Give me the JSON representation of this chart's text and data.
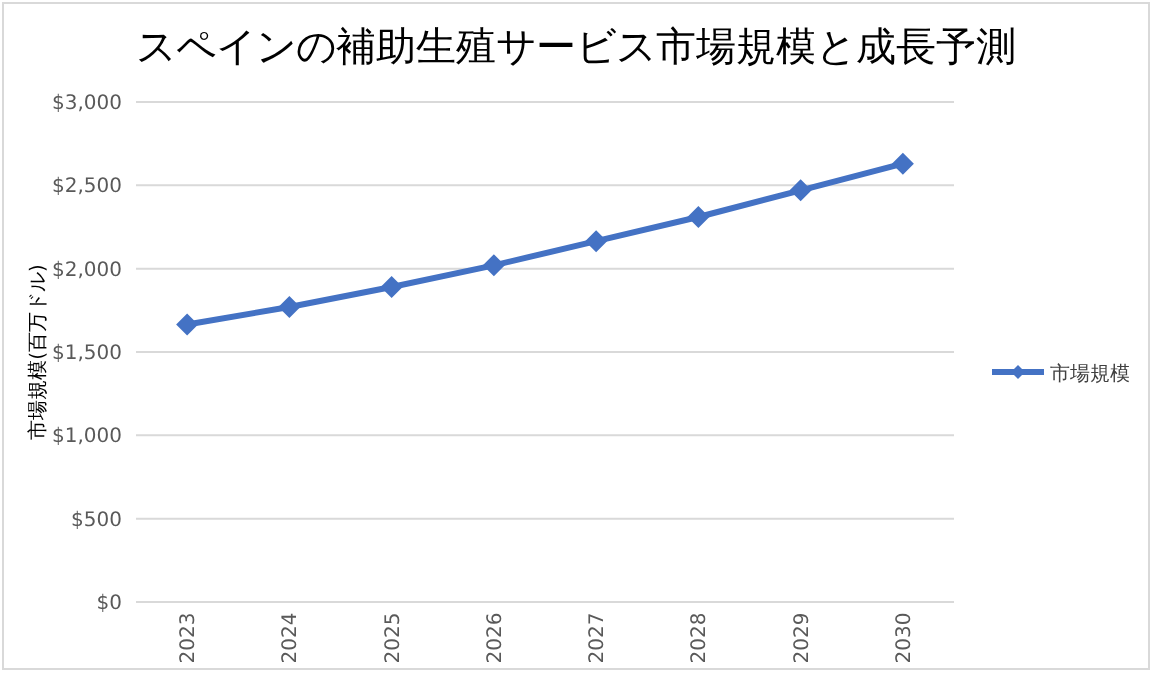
{
  "chart_data": {
    "type": "line",
    "title": "スペインの補助生殖サービス市場規模と成長予測",
    "ylabel": "市場規模(百万ドル)",
    "categories": [
      "2023",
      "2024",
      "2025",
      "2026",
      "2027",
      "2028",
      "2029",
      "2030"
    ],
    "series": [
      {
        "name": "市場規模",
        "color": "#4472c4",
        "values": [
          1665,
          1770,
          1890,
          2020,
          2165,
          2310,
          2470,
          2630
        ]
      }
    ],
    "ylim": [
      0,
      3000
    ],
    "yticks": [
      {
        "value": 0,
        "label": "$0"
      },
      {
        "value": 500,
        "label": "$500"
      },
      {
        "value": 1000,
        "label": "$1,000"
      },
      {
        "value": 1500,
        "label": "$1,500"
      },
      {
        "value": 2000,
        "label": "$2,000"
      },
      {
        "value": 2500,
        "label": "$2,500"
      },
      {
        "value": 3000,
        "label": "$3,000"
      }
    ],
    "grid": "y",
    "legend": "right",
    "marker": "diamond",
    "line_style": "solid"
  }
}
